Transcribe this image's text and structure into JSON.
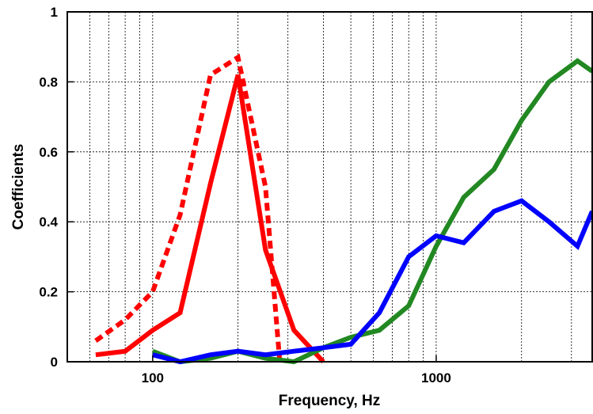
{
  "chart_data": {
    "type": "line",
    "title": "",
    "xlabel": "Frequency, Hz",
    "ylabel": "Coefficients",
    "xscale": "log",
    "xlim": [
      50,
      3550
    ],
    "ylim": [
      0,
      1
    ],
    "grid": true,
    "x_ticks": [
      {
        "value": 100,
        "label": "100"
      },
      {
        "value": 1000,
        "label": "1000"
      }
    ],
    "y_ticks": [
      {
        "value": 0,
        "label": "0"
      },
      {
        "value": 0.2,
        "label": "0.2"
      },
      {
        "value": 0.4,
        "label": "0.4"
      },
      {
        "value": 0.6,
        "label": "0.6"
      },
      {
        "value": 0.8,
        "label": "0.8"
      },
      {
        "value": 1,
        "label": "1"
      }
    ],
    "series": [
      {
        "color": "#ff0000",
        "style": "dotted",
        "points": [
          [
            63,
            0.06
          ],
          [
            80,
            0.12
          ],
          [
            100,
            0.2
          ],
          [
            125,
            0.42
          ],
          [
            160,
            0.82
          ],
          [
            200,
            0.87
          ],
          [
            250,
            0.5
          ],
          [
            280,
            0.01
          ]
        ]
      },
      {
        "color": "#ff0000",
        "style": "solid",
        "points": [
          [
            63,
            0.02
          ],
          [
            80,
            0.03
          ],
          [
            100,
            0.09
          ],
          [
            125,
            0.14
          ],
          [
            160,
            0.51
          ],
          [
            200,
            0.82
          ],
          [
            250,
            0.32
          ],
          [
            315,
            0.09
          ],
          [
            400,
            0.0
          ]
        ]
      },
      {
        "color": "#228822",
        "style": "solid",
        "points": [
          [
            100,
            0.03
          ],
          [
            125,
            0.0
          ],
          [
            160,
            0.01
          ],
          [
            200,
            0.03
          ],
          [
            250,
            0.01
          ],
          [
            315,
            0.0
          ],
          [
            400,
            0.04
          ],
          [
            500,
            0.07
          ],
          [
            630,
            0.09
          ],
          [
            800,
            0.16
          ],
          [
            1000,
            0.33
          ],
          [
            1250,
            0.47
          ],
          [
            1600,
            0.55
          ],
          [
            2000,
            0.69
          ],
          [
            2500,
            0.8
          ],
          [
            3150,
            0.86
          ],
          [
            3550,
            0.83
          ]
        ]
      },
      {
        "color": "#0000ff",
        "style": "solid",
        "points": [
          [
            100,
            0.02
          ],
          [
            125,
            0.0
          ],
          [
            160,
            0.02
          ],
          [
            200,
            0.03
          ],
          [
            250,
            0.02
          ],
          [
            315,
            0.03
          ],
          [
            400,
            0.04
          ],
          [
            500,
            0.05
          ],
          [
            630,
            0.14
          ],
          [
            800,
            0.3
          ],
          [
            1000,
            0.36
          ],
          [
            1250,
            0.34
          ],
          [
            1600,
            0.43
          ],
          [
            2000,
            0.46
          ],
          [
            2500,
            0.4
          ],
          [
            3150,
            0.33
          ],
          [
            3550,
            0.43
          ]
        ]
      }
    ]
  }
}
